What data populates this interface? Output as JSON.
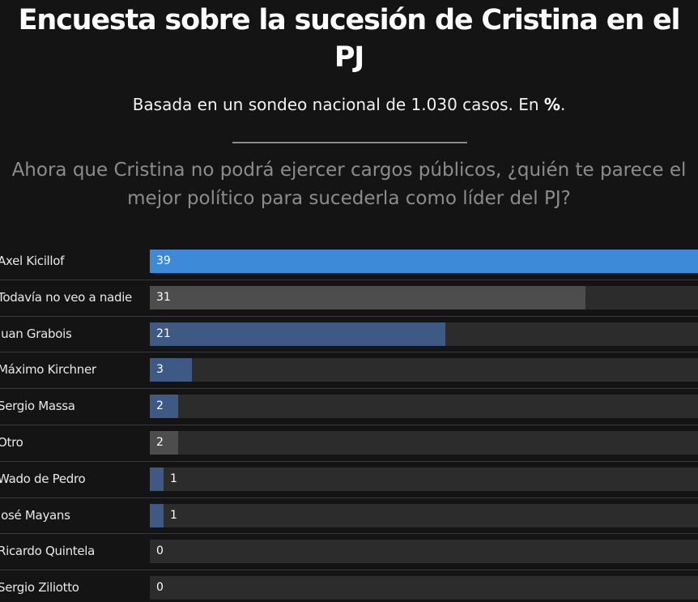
{
  "header": {
    "title": "Encuesta sobre la sucesión de Cristina en el PJ",
    "subtitle_main": "Basada en un sondeo nacional de 1.030 casos. En ",
    "subtitle_unit": "%",
    "subtitle_end": ".",
    "question": "Ahora que Cristina no podrá ejercer cargos públicos, ¿quién te parece el mejor político para sucederla como líder del PJ?"
  },
  "colors": {
    "background": "#141414",
    "track": "#2c2c2c",
    "highlight": "#3d8bd8",
    "politician": "#3e5a84",
    "neutral": "#4d4d4d"
  },
  "chart_data": {
    "type": "bar",
    "orientation": "horizontal",
    "title": "Encuesta sobre la sucesión de Cristina en el PJ",
    "unit": "%",
    "xlim": [
      0,
      39
    ],
    "categories": [
      "Axel Kicillof",
      "Todavía no veo a nadie",
      "Juan Grabois",
      "Máximo Kirchner",
      "Sergio Massa",
      "Otro",
      "Wado de Pedro",
      "José Mayans",
      "Ricardo Quintela",
      "Sergio Ziliotto"
    ],
    "values": [
      39,
      31,
      21,
      3,
      2,
      2,
      1,
      1,
      0,
      0
    ],
    "bar_colors": [
      "#3d8bd8",
      "#4d4d4d",
      "#3e5a84",
      "#3e5a84",
      "#3e5a84",
      "#4d4d4d",
      "#3e5a84",
      "#3e5a84",
      "#3e5a84",
      "#3e5a84"
    ]
  }
}
